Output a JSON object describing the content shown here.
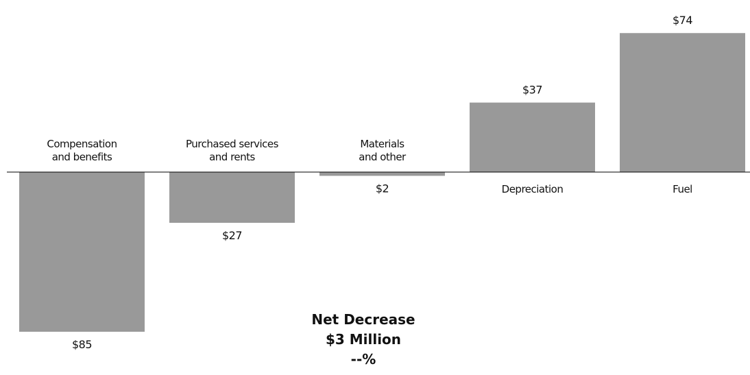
{
  "chart_data": {
    "type": "bar",
    "categories": [
      [
        "Compensation",
        "and benefits"
      ],
      [
        "Purchased services",
        "and rents"
      ],
      [
        "Materials",
        "and other"
      ],
      [
        "Depreciation"
      ],
      [
        "Fuel"
      ]
    ],
    "values": [
      -85,
      -27,
      -2,
      37,
      74
    ],
    "value_labels": [
      "$85",
      "$27",
      "$2",
      "$37",
      "$74"
    ],
    "bar_color": "#999999",
    "baseline_color": "#000000",
    "grid": false
  },
  "summary": {
    "line1": "Net Decrease",
    "line2": "$3 Million",
    "line3": "--%"
  }
}
